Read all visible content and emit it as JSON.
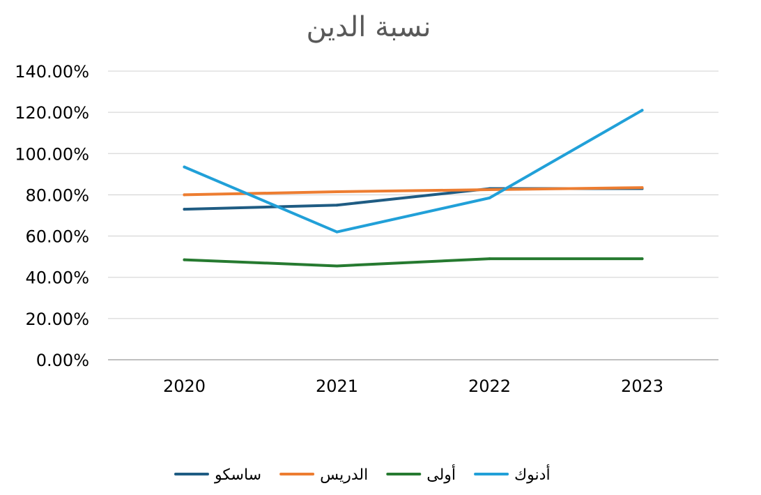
{
  "chart_data": {
    "type": "line",
    "title": "نسبة الدين",
    "categories": [
      "2020",
      "2021",
      "2022",
      "2023"
    ],
    "ylim": [
      0,
      1.4
    ],
    "y_ticks": [
      0,
      0.2,
      0.4,
      0.6,
      0.8,
      1.0,
      1.2,
      1.4
    ],
    "y_tick_labels": [
      "0.00%",
      "20.00%",
      "40.00%",
      "60.00%",
      "80.00%",
      "100.00%",
      "120.00%",
      "140.00%"
    ],
    "grid": true,
    "legend_position": "bottom",
    "series": [
      {
        "name": "ساسكو",
        "color": "#1f5c83",
        "values": [
          0.73,
          0.75,
          0.83,
          0.83
        ]
      },
      {
        "name": "الدريس",
        "color": "#ed7d31",
        "values": [
          0.8,
          0.815,
          0.825,
          0.835
        ]
      },
      {
        "name": "أولى",
        "color": "#267a30",
        "values": [
          0.485,
          0.455,
          0.49,
          0.49
        ]
      },
      {
        "name": "أدنوك",
        "color": "#21a0d8",
        "values": [
          0.935,
          0.62,
          0.785,
          1.21
        ]
      }
    ]
  }
}
